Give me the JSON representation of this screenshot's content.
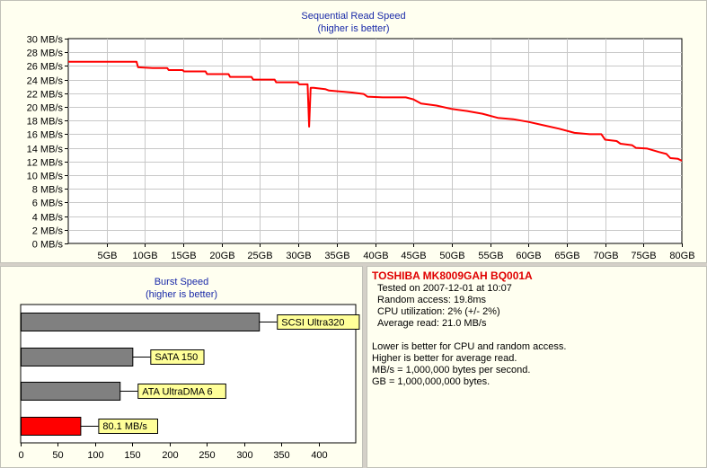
{
  "seq_panel": {
    "title": "Sequential Read Speed",
    "subtitle": "(higher is better)"
  },
  "burst_panel": {
    "title": "Burst Speed",
    "subtitle": "(higher is better)"
  },
  "info": {
    "drive_name": "TOSHIBA MK8009GAH BQ001A",
    "tested_on": "Tested on 2007-12-01 at 10:07",
    "random_access": "Random access: 19.8ms",
    "cpu": "CPU utilization: 2% (+/- 2%)",
    "average_read": "Average read: 21.0 MB/s",
    "notes": [
      "Lower is better for CPU and random access.",
      "Higher is better for average read.",
      "MB/s = 1,000,000 bytes per second.",
      "GB = 1,000,000,000 bytes."
    ]
  },
  "colors": {
    "line": "#ff0000",
    "bar_gray": "#808080",
    "bar_red": "#ff0000",
    "label_bg": "#ffff99",
    "title_blue": "#1a2aa8"
  },
  "chart_data": [
    {
      "type": "line",
      "title": "Sequential Read Speed",
      "subtitle": "(higher is better)",
      "ylim": [
        0,
        30
      ],
      "xlim": [
        0,
        80
      ],
      "yticks": [
        0,
        2,
        4,
        6,
        8,
        10,
        12,
        14,
        16,
        18,
        20,
        22,
        24,
        26,
        28,
        30
      ],
      "ytick_labels": [
        "0 MB/s",
        "2 MB/s",
        "4 MB/s",
        "6 MB/s",
        "8 MB/s",
        "10 MB/s",
        "12 MB/s",
        "14 MB/s",
        "16 MB/s",
        "18 MB/s",
        "20 MB/s",
        "22 MB/s",
        "24 MB/s",
        "26 MB/s",
        "28 MB/s",
        "30 MB/s"
      ],
      "xticks": [
        5,
        10,
        15,
        20,
        25,
        30,
        35,
        40,
        45,
        50,
        55,
        60,
        65,
        70,
        75,
        80
      ],
      "xtick_labels": [
        "5GB",
        "10GB",
        "15GB",
        "20GB",
        "25GB",
        "30GB",
        "35GB",
        "40GB",
        "45GB",
        "50GB",
        "55GB",
        "60GB",
        "65GB",
        "70GB",
        "75GB",
        "80GB"
      ],
      "grid": true,
      "series": [
        {
          "x": [
            0,
            3,
            6,
            8.9,
            9.1,
            11,
            12.9,
            13.1,
            14.9,
            15.1,
            17.9,
            18.1,
            20.9,
            21.1,
            23.9,
            24.1,
            26.9,
            27.1,
            29.9,
            30.1,
            31.2,
            31.4,
            31.6,
            32,
            33.5,
            34,
            35,
            37,
            38.5,
            39,
            41,
            44,
            45,
            46,
            48,
            50,
            52,
            54,
            56,
            58,
            60,
            62,
            64,
            66,
            68,
            69.5,
            70,
            71.5,
            72,
            73.5,
            74,
            75.5,
            77,
            78,
            78.5,
            79.5,
            80
          ],
          "y": [
            26.6,
            26.6,
            26.6,
            26.6,
            25.8,
            25.7,
            25.7,
            25.4,
            25.4,
            25.2,
            25.2,
            24.8,
            24.8,
            24.4,
            24.4,
            24.0,
            24.0,
            23.6,
            23.6,
            23.3,
            23.3,
            17.1,
            22.8,
            22.8,
            22.6,
            22.4,
            22.3,
            22.1,
            21.9,
            21.5,
            21.4,
            21.4,
            21.1,
            20.5,
            20.2,
            19.7,
            19.4,
            19.0,
            18.4,
            18.2,
            17.8,
            17.3,
            16.8,
            16.2,
            16.0,
            16.0,
            15.2,
            15.0,
            14.6,
            14.4,
            14.0,
            13.9,
            13.4,
            13.1,
            12.5,
            12.4,
            12.1
          ]
        }
      ]
    },
    {
      "type": "bar",
      "orientation": "horizontal",
      "title": "Burst Speed",
      "subtitle": "(higher is better)",
      "xlim": [
        0,
        450
      ],
      "xticks": [
        0,
        50,
        100,
        150,
        200,
        250,
        300,
        350,
        400
      ],
      "categories": [
        "SCSI Ultra320",
        "SATA 150",
        "ATA UltraDMA 6",
        "80.1 MB/s"
      ],
      "values": [
        320,
        150,
        133,
        80.1
      ],
      "highlight_index": 3
    }
  ]
}
